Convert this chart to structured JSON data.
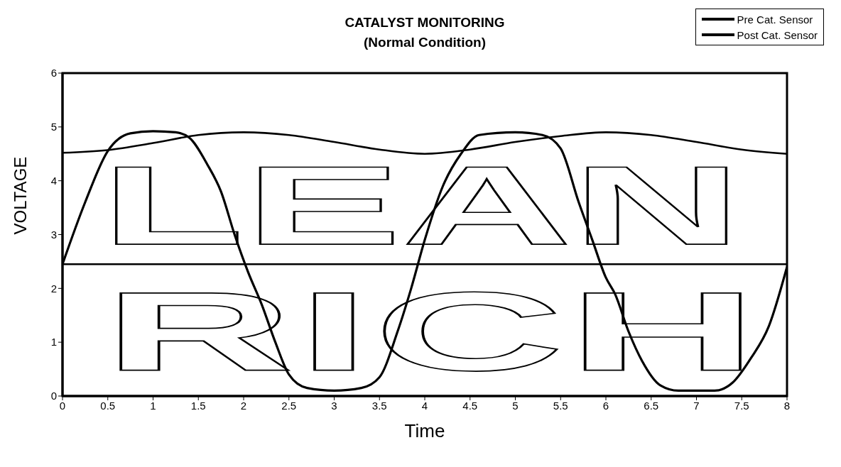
{
  "chart_data": {
    "type": "line",
    "title": "CATALYST MONITORING",
    "subtitle": "(Normal Condition)",
    "xlabel": "Time",
    "ylabel": "VOLTAGE",
    "annotations": [
      "LEAN",
      "RICH"
    ],
    "xlim": [
      0,
      8
    ],
    "xticks": [
      0,
      0.5,
      1,
      1.5,
      2,
      2.5,
      3,
      3.5,
      4,
      4.5,
      5,
      5.5,
      6,
      6.5,
      7,
      7.5,
      8
    ],
    "ylim": [
      0,
      6
    ],
    "yticks": [
      0,
      1,
      2,
      3,
      4,
      5,
      6
    ],
    "grid": false,
    "legend": "top right",
    "marker": "none",
    "line_style": "solid",
    "ref_lines": [
      {
        "axis": "y",
        "value": 2.45,
        "label": null,
        "color": "#000000"
      }
    ],
    "series": [
      {
        "name": "Pre Cat. Sensor",
        "color": "#000000",
        "x": [
          0,
          0.25,
          0.5,
          0.75,
          1,
          1.25,
          1.4,
          1.6,
          1.75,
          1.9,
          2.05,
          2.2,
          2.35,
          2.5,
          2.7,
          3,
          3.3,
          3.5,
          3.7,
          3.85,
          4,
          4.2,
          4.4,
          4.6,
          5,
          5.3,
          5.5,
          5.7,
          5.85,
          6,
          6.1,
          6.25,
          6.4,
          6.6,
          6.8,
          7.2,
          7.4,
          7.6,
          7.8,
          8
        ],
        "values": [
          2.45,
          3.6,
          4.55,
          4.88,
          4.92,
          4.9,
          4.8,
          4.3,
          3.8,
          3.0,
          2.3,
          1.7,
          1.0,
          0.4,
          0.15,
          0.1,
          0.15,
          0.35,
          1.2,
          2.0,
          2.9,
          3.9,
          4.5,
          4.85,
          4.9,
          4.85,
          4.6,
          3.6,
          2.9,
          2.2,
          1.9,
          1.2,
          0.65,
          0.2,
          0.1,
          0.1,
          0.25,
          0.7,
          1.3,
          2.4
        ]
      },
      {
        "name": "Post Cat. Sensor",
        "color": "#000000",
        "x": [
          0,
          0.5,
          1,
          1.5,
          2,
          2.5,
          3,
          3.5,
          4,
          4.5,
          5,
          5.5,
          6,
          6.5,
          7,
          7.5,
          8
        ],
        "values": [
          4.52,
          4.57,
          4.7,
          4.85,
          4.9,
          4.85,
          4.72,
          4.58,
          4.5,
          4.58,
          4.72,
          4.83,
          4.9,
          4.85,
          4.72,
          4.58,
          4.5
        ]
      }
    ]
  }
}
